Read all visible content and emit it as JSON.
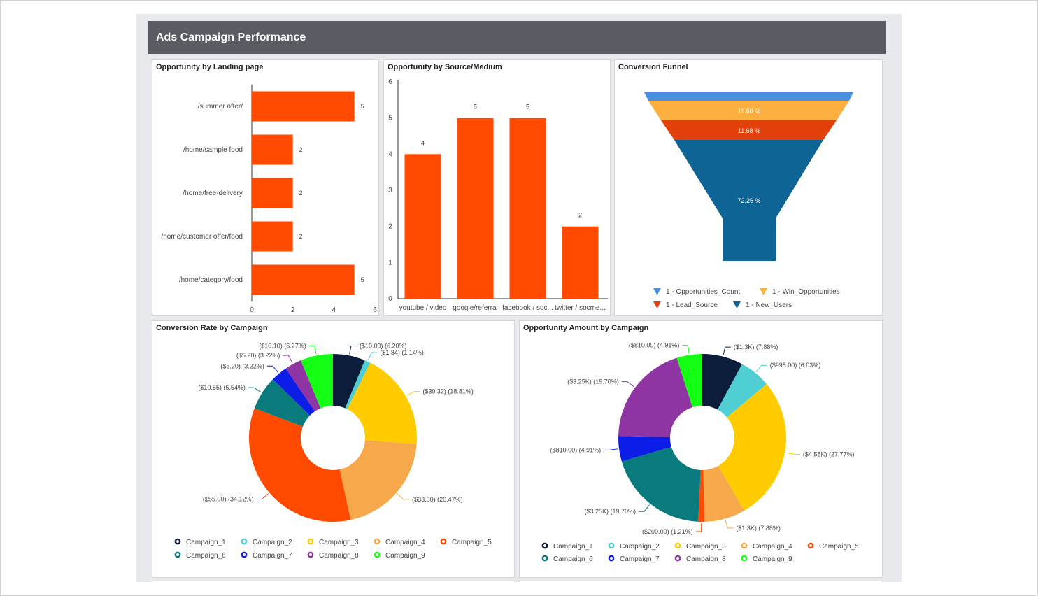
{
  "dashboard": {
    "title": "Ads Campaign Performance"
  },
  "panels": {
    "landing": {
      "title": "Opportunity by Landing page"
    },
    "source": {
      "title": "Opportunity by Source/Medium"
    },
    "funnel": {
      "title": "Conversion Funnel"
    },
    "rate": {
      "title": "Conversion Rate by Campaign"
    },
    "amount": {
      "title": "Opportunity Amount by Campaign"
    }
  },
  "colors": {
    "bar": "#ff4a00",
    "header": "#595d63",
    "background": "#e8e9ec"
  },
  "chart_data": [
    {
      "id": "landing",
      "type": "bar",
      "orientation": "horizontal",
      "title": "Opportunity by Landing page",
      "categories": [
        "/summer offer/",
        "/home/sample food",
        "/home/free-delivery",
        "/home/customer offer/food",
        "/home/category/food"
      ],
      "values": [
        5,
        2,
        2,
        2,
        5
      ],
      "xlim": [
        0,
        6
      ],
      "xticks": [
        0,
        2,
        4,
        6
      ],
      "color": "#ff4a00",
      "grid": false
    },
    {
      "id": "source",
      "type": "bar",
      "title": "Opportunity by Source/Medium",
      "categories": [
        "youtube / video",
        "google/referral",
        "facebook / soc...",
        "twitter / socme..."
      ],
      "values": [
        4,
        5,
        5,
        2
      ],
      "ylim": [
        0,
        6
      ],
      "yticks": [
        0,
        1,
        2,
        3,
        4,
        5,
        6
      ],
      "color": "#ff4a00",
      "grid": false
    },
    {
      "id": "funnel",
      "type": "funnel",
      "title": "Conversion Funnel",
      "stages": [
        {
          "name": "1 - Opportunities_Count",
          "label": "",
          "color": "#4a90e2"
        },
        {
          "name": "1 - Win_Opportunities",
          "label": "11.68 %",
          "color": "#fbb040"
        },
        {
          "name": "1 - Lead_Source",
          "label": "11.68 %",
          "color": "#e2400b"
        },
        {
          "name": "1 - New_Users",
          "label": "72.26 %",
          "color": "#0f6496"
        }
      ],
      "legend_position": "bottom"
    },
    {
      "id": "rate",
      "type": "pie",
      "donut": true,
      "title": "Conversion Rate by Campaign",
      "series": [
        {
          "name": "Campaign_1",
          "value": 10.0,
          "label": "($10.00) (6.20%)",
          "color": "#0b1d3a"
        },
        {
          "name": "Campaign_2",
          "value": 1.84,
          "label": "($1.84) (1.14%)",
          "color": "#4fcfd3"
        },
        {
          "name": "Campaign_3",
          "value": 30.32,
          "label": "($30.32) (18.81%)",
          "color": "#ffcc00"
        },
        {
          "name": "Campaign_4",
          "value": 33.0,
          "label": "($33.00) (20.47%)",
          "color": "#f7a84a"
        },
        {
          "name": "Campaign_5",
          "value": 55.0,
          "label": "($55.00) (34.12%)",
          "color": "#ff4a00"
        },
        {
          "name": "Campaign_6",
          "value": 10.55,
          "label": "($10.55) (6.54%)",
          "color": "#0a7b7c"
        },
        {
          "name": "Campaign_7",
          "value": 5.2,
          "label": "($5.20) (3.22%)",
          "color": "#0d1de8"
        },
        {
          "name": "Campaign_8",
          "value": 5.2,
          "label": "($5.20) (3.22%)",
          "color": "#8e35a3"
        },
        {
          "name": "Campaign_9",
          "value": 10.1,
          "label": "($10.10) (6.27%)",
          "color": "#15ff15"
        }
      ],
      "legend_position": "bottom"
    },
    {
      "id": "amount",
      "type": "pie",
      "donut": true,
      "title": "Opportunity Amount by Campaign",
      "series": [
        {
          "name": "Campaign_1",
          "value": 1.3,
          "label": "($1.3K) (7.88%)",
          "color": "#0b1d3a"
        },
        {
          "name": "Campaign_2",
          "value": 0.995,
          "label": "($995.00) (6.03%)",
          "color": "#4fcfd3"
        },
        {
          "name": "Campaign_3",
          "value": 4.58,
          "label": "($4.58K) (27.77%)",
          "color": "#ffcc00"
        },
        {
          "name": "Campaign_4",
          "value": 1.3,
          "label": "($1.3K) (7.88%)",
          "color": "#f7a84a"
        },
        {
          "name": "Campaign_5",
          "value": 0.2,
          "label": "($200.00) (1.21%)",
          "color": "#ff4a00"
        },
        {
          "name": "Campaign_6",
          "value": 3.25,
          "label": "($3.25K) (19.70%)",
          "color": "#0a7b7c"
        },
        {
          "name": "Campaign_7",
          "value": 0.81,
          "label": "($810.00) (4.91%)",
          "color": "#0d1de8"
        },
        {
          "name": "Campaign_8",
          "value": 3.25,
          "label": "($3.25K) (19.70%)",
          "color": "#8e35a3"
        },
        {
          "name": "Campaign_9",
          "value": 0.81,
          "label": "($810.00) (4.91%)",
          "color": "#15ff15"
        }
      ],
      "legend_position": "bottom"
    }
  ]
}
